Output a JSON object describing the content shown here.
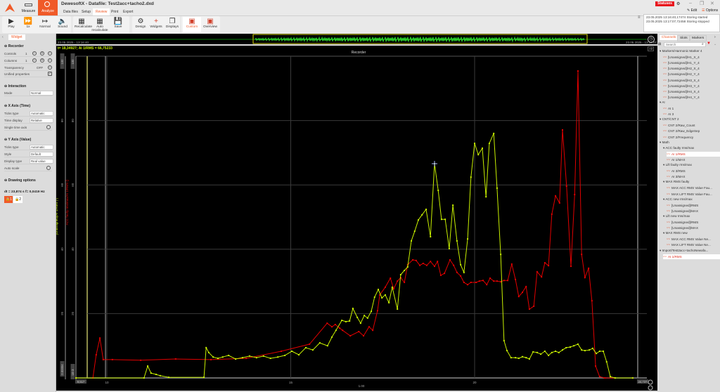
{
  "app": {
    "title": "DewesoftX - Datafile: Test2acc+tacho2.dxd",
    "modes": [
      "Measure",
      "Analyze"
    ],
    "active_mode": "Analyze",
    "tabs": [
      "Data files",
      "Setup",
      "Review",
      "Print",
      "Export"
    ],
    "active_tab": "Review",
    "statuses_label": "Statuses",
    "edit_label": "Edit",
    "options_label": "Options",
    "accent": "#f05a28"
  },
  "log": [
    "23.05.2025 13:16:40,17474 Storing started",
    "23.05.2025 13:17:07,72458 Storing stopped"
  ],
  "toolbar": [
    {
      "label": "Play",
      "icon": "play-icon"
    },
    {
      "label": "1x",
      "icon": "fast-forward-icon"
    },
    {
      "label": "Normal",
      "icon": "range-icon"
    },
    {
      "label": "Sound",
      "icon": "speaker-icon"
    },
    {
      "label": "Recalculate",
      "icon": "calculator-icon"
    },
    {
      "label": "Auto recalculate",
      "icon": "auto-calculator-icon"
    },
    {
      "label": "Save",
      "icon": "save-icon"
    },
    {
      "label": "Design",
      "icon": "gear-icon"
    },
    {
      "label": "Widgets",
      "icon": "plus-icon"
    },
    {
      "label": "Displays",
      "icon": "displays-icon"
    },
    {
      "label": "Custom",
      "icon": "display-icon"
    },
    {
      "label": "Overview",
      "icon": "display-icon"
    }
  ],
  "left": {
    "tab": "Widget",
    "recorder": {
      "title": "Recorder",
      "controls_label": "Controls",
      "controls": "1",
      "columns_label": "Columns",
      "columns": "1",
      "transparency_label": "Transparency",
      "transparency": "OFF",
      "unified_label": "Unified properties",
      "unified": true
    },
    "interaction": {
      "title": "Interaction",
      "mode_label": "Mode",
      "mode": "Normal"
    },
    "xaxis": {
      "title": "X Axis (Time)",
      "ticks_label": "Ticks type",
      "ticks": "Automatic",
      "time_display_label": "Time display",
      "time_display": "Relative",
      "single_label": "Single time axis",
      "single": false
    },
    "yaxis": {
      "title": "Y Axis (Value)",
      "ticks_label": "Ticks type",
      "ticks": "Automatic",
      "style_label": "Style",
      "style": "Default",
      "display_label": "Display type",
      "display": "Real value",
      "auto_label": "Auto scale",
      "auto": false
    },
    "drawing": {
      "title": "Drawing options"
    },
    "readout": "dt = 23,874 s  f= 0,0419 Hz",
    "lock1": "1",
    "lock2": "2"
  },
  "overview": {
    "start": "23.05.2025 - 13:16:40",
    "end": "23.05.2025 - 13:17:07"
  },
  "cursor_readout": "t= 18,34927; AI 1/RMS = 66,75233",
  "right": {
    "tabs": [
      "Channels",
      "Slots",
      "Markers"
    ],
    "active_tab": "Channels",
    "search_placeholder": "Search",
    "tree": [
      {
        "t": "Markers/Harmonic Marker 4",
        "lvl": 0,
        "g": 1
      },
      {
        "t": "[Unassigned]/H1_X_4",
        "lvl": 1
      },
      {
        "t": "[Unassigned]/H1_Y_4",
        "lvl": 1
      },
      {
        "t": "[Unassigned]/H2_X_4",
        "lvl": 1
      },
      {
        "t": "[Unassigned]/H2_Y_4",
        "lvl": 1
      },
      {
        "t": "[Unassigned]/H3_X_4",
        "lvl": 1
      },
      {
        "t": "[Unassigned]/H3_Y_4",
        "lvl": 1
      },
      {
        "t": "[Unassigned]/H4_X_4",
        "lvl": 1
      },
      {
        "t": "[Unassigned]/H4_Y_4",
        "lvl": 1
      },
      {
        "t": "AI",
        "lvl": 0,
        "g": 1
      },
      {
        "t": "AI 1",
        "lvl": 1
      },
      {
        "t": "AI 3",
        "lvl": 1
      },
      {
        "t": "CNT/CNT 2",
        "lvl": 0,
        "g": 1
      },
      {
        "t": "CNT 2/Raw_Count",
        "lvl": 1
      },
      {
        "t": "CNT 2/Raw_EdgeSep",
        "lvl": 1
      },
      {
        "t": "CNT 2/Frequency",
        "lvl": 1
      },
      {
        "t": "Math",
        "lvl": 0,
        "g": 1
      },
      {
        "t": "ACC faulty rms/max",
        "lvl": 1,
        "g": 1
      },
      {
        "t": "AI 1/RMS",
        "lvl": 2,
        "sel": 1
      },
      {
        "t": "AI 1/MAX",
        "lvl": 2
      },
      {
        "t": "Lift faulty rms/max",
        "lvl": 1,
        "g": 1
      },
      {
        "t": "AI 3/RMS",
        "lvl": 2
      },
      {
        "t": "AI 3/MAX",
        "lvl": 2
      },
      {
        "t": "MAX RMS faulty",
        "lvl": 1,
        "g": 1
      },
      {
        "t": "MAX ACC RMS Value Fau...",
        "lvl": 2
      },
      {
        "t": "MAX LIFT RMS Value Fau...",
        "lvl": 2
      },
      {
        "t": "ACC new rms/max",
        "lvl": 1,
        "g": 1
      },
      {
        "t": "[Unassigned]/RMS",
        "lvl": 2
      },
      {
        "t": "[Unassigned]/MAX",
        "lvl": 2
      },
      {
        "t": "Lift new rms/max",
        "lvl": 1,
        "g": 1
      },
      {
        "t": "[Unassigned]/RMS",
        "lvl": 2
      },
      {
        "t": "[Unassigned]/MAX",
        "lvl": 2
      },
      {
        "t": "MAX RMS new",
        "lvl": 1,
        "g": 1
      },
      {
        "t": "MAX ACC RMS Value Ne...",
        "lvl": 2
      },
      {
        "t": "MAX LIFT RMS Value Ne...",
        "lvl": 2
      },
      {
        "t": "Import/Test2acc+tachoNewafa...",
        "lvl": 0,
        "g": 1
      },
      {
        "t": "AI 1/RMS",
        "lvl": 1,
        "sel": 1
      }
    ]
  },
  "chart_data": {
    "type": "line",
    "title": "Recorder",
    "corner_label": "Alt",
    "xlim": [
      9.517,
      24.737
    ],
    "x_min_label": "9,517",
    "x_max_label": "24,737",
    "xticks": [
      "10",
      "15",
      "20"
    ],
    "xlabel": "1.00",
    "ylim": [
      0,
      100
    ],
    "yticks": [
      "20",
      "40",
      "60",
      "80"
    ],
    "y_top_label": "100",
    "y_left_bottom_label": "0.00004",
    "y_right_bottom_label": "1E-3",
    "ylabel_left": "[Unassigned]/AI 1/RMS (-)",
    "ylabel_right": "ACC faulty rms/max/AI 1/RMS ()",
    "grid": true,
    "series": [
      {
        "color": "#c8f000",
        "x": [
          9.16,
          11.01,
          11.11,
          11.2,
          11.34,
          11.45,
          11.68,
          12.64,
          12.7,
          12.77,
          12.89,
          13.02,
          13.15,
          13.31,
          13.5,
          13.69,
          13.88,
          14.07,
          14.26,
          14.45,
          14.65,
          14.84,
          15.03,
          15.22,
          15.41,
          15.6,
          15.79,
          16.0,
          16.12,
          16.23,
          16.39,
          16.5,
          16.6,
          16.69,
          16.81,
          16.9,
          17.0,
          17.09,
          17.19,
          17.28,
          17.38,
          17.48,
          17.57,
          17.67,
          17.76,
          17.9,
          17.99,
          18.09,
          18.18,
          18.28,
          18.37,
          18.47,
          18.57,
          18.68,
          18.8,
          18.91,
          19.01,
          19.1,
          19.2,
          19.31,
          19.41,
          19.52,
          19.62,
          19.71,
          19.81,
          19.9,
          20.0,
          20.1,
          20.21,
          20.31,
          20.4,
          20.52,
          20.61,
          20.71,
          20.8,
          20.88,
          20.99,
          21.11,
          21.2,
          21.3,
          21.4,
          21.49,
          21.59,
          21.7,
          21.8,
          21.91,
          22.01,
          22.1,
          22.2,
          22.29,
          22.39,
          22.49,
          22.6,
          22.7,
          22.81,
          22.91,
          23.0,
          23.12,
          23.21,
          23.31,
          23.4,
          23.5,
          23.59,
          23.69,
          23.82,
          24.3
        ],
        "y": [
          0,
          0,
          3.7,
          1.5,
          1.1,
          0.7,
          0.2,
          0.2,
          9.4,
          7.9,
          6.5,
          6.1,
          6.5,
          7.0,
          5.9,
          6.3,
          6.8,
          6.3,
          6.8,
          6.1,
          6.5,
          7.0,
          8.3,
          7.2,
          9.4,
          8.7,
          10.9,
          10.0,
          12.7,
          14.8,
          17.9,
          17.5,
          17.7,
          21.6,
          18.8,
          17.0,
          19.4,
          18.6,
          20.7,
          25.1,
          27.5,
          24.9,
          25.8,
          23.4,
          28.2,
          21.4,
          32.1,
          33.4,
          34.5,
          42.6,
          45.6,
          49.1,
          50.7,
          52.4,
          43.9,
          66.6,
          58.3,
          49.3,
          49.3,
          40.2,
          53.7,
          42.6,
          35.2,
          32.8,
          43.2,
          62.4,
          72.9,
          69.4,
          71.4,
          56.3,
          72.9,
          76.0,
          59.0,
          38.4,
          11.6,
          8.5,
          6.3,
          6.3,
          6.1,
          6.6,
          6.3,
          5.9,
          8.1,
          7.9,
          7.4,
          8.3,
          7.0,
          7.9,
          8.3,
          7.9,
          8.7,
          9.4,
          9.6,
          10.0,
          10.5,
          8.7,
          8.5,
          8.7,
          9.2,
          7.6,
          8.3,
          8.3,
          5.0,
          0.4,
          0,
          0
        ]
      },
      {
        "color": "#e00000",
        "x": [
          9.16,
          9.62,
          9.71,
          9.81,
          9.9,
          10.15,
          10.92,
          11.87,
          12.83,
          13.79,
          14.74,
          15.51,
          15.99,
          16.12,
          16.21,
          16.33,
          16.41,
          16.62,
          16.85,
          16.98,
          17.13,
          17.23,
          17.36,
          17.42,
          17.57,
          17.71,
          17.8,
          17.9,
          17.99,
          18.09,
          18.18,
          18.32,
          18.41,
          18.51,
          18.6,
          18.7,
          18.8,
          18.91,
          18.99,
          19.08,
          19.18,
          19.33,
          19.43,
          19.52,
          19.62,
          19.71,
          19.81,
          19.9,
          20.04,
          20.13,
          20.23,
          20.33,
          20.42,
          20.52,
          20.61,
          20.71,
          20.8,
          20.9,
          21.01,
          21.11,
          21.2,
          21.3,
          21.4,
          21.49,
          21.61,
          21.7,
          21.82,
          21.91,
          22.01,
          22.1,
          22.2,
          22.31,
          22.39,
          22.5,
          22.62,
          22.72,
          22.81,
          22.91,
          23.0,
          23.1,
          23.19,
          23.29,
          23.4,
          23.54,
          24.3
        ],
        "y": [
          0,
          0,
          7.2,
          12.4,
          5.7,
          5.7,
          5.5,
          5.9,
          5.7,
          6.1,
          8.3,
          10.5,
          17.0,
          15.9,
          16.6,
          15.5,
          14.8,
          13.1,
          14.4,
          13.1,
          15.9,
          14.8,
          20.9,
          25.8,
          28.2,
          31.0,
          27.7,
          30.1,
          31.2,
          29.7,
          35.2,
          36.7,
          36.5,
          35.0,
          35.6,
          35.0,
          36.2,
          34.7,
          36.2,
          31.9,
          32.5,
          36.7,
          35.0,
          32.8,
          31.7,
          29.7,
          29.0,
          29.7,
          29.7,
          30.1,
          30.3,
          29.0,
          31.0,
          30.1,
          30.1,
          29.9,
          30.3,
          30.3,
          35.4,
          30.6,
          25.3,
          26.6,
          28.4,
          21.4,
          22.3,
          33.0,
          31.4,
          35.8,
          34.9,
          50.9,
          56.6,
          54.4,
          77.1,
          59.6,
          34.7,
          57.0,
          95.4,
          38.4,
          31.2,
          34.1,
          24.0,
          3.7,
          0.4,
          0,
          0
        ]
      }
    ]
  }
}
